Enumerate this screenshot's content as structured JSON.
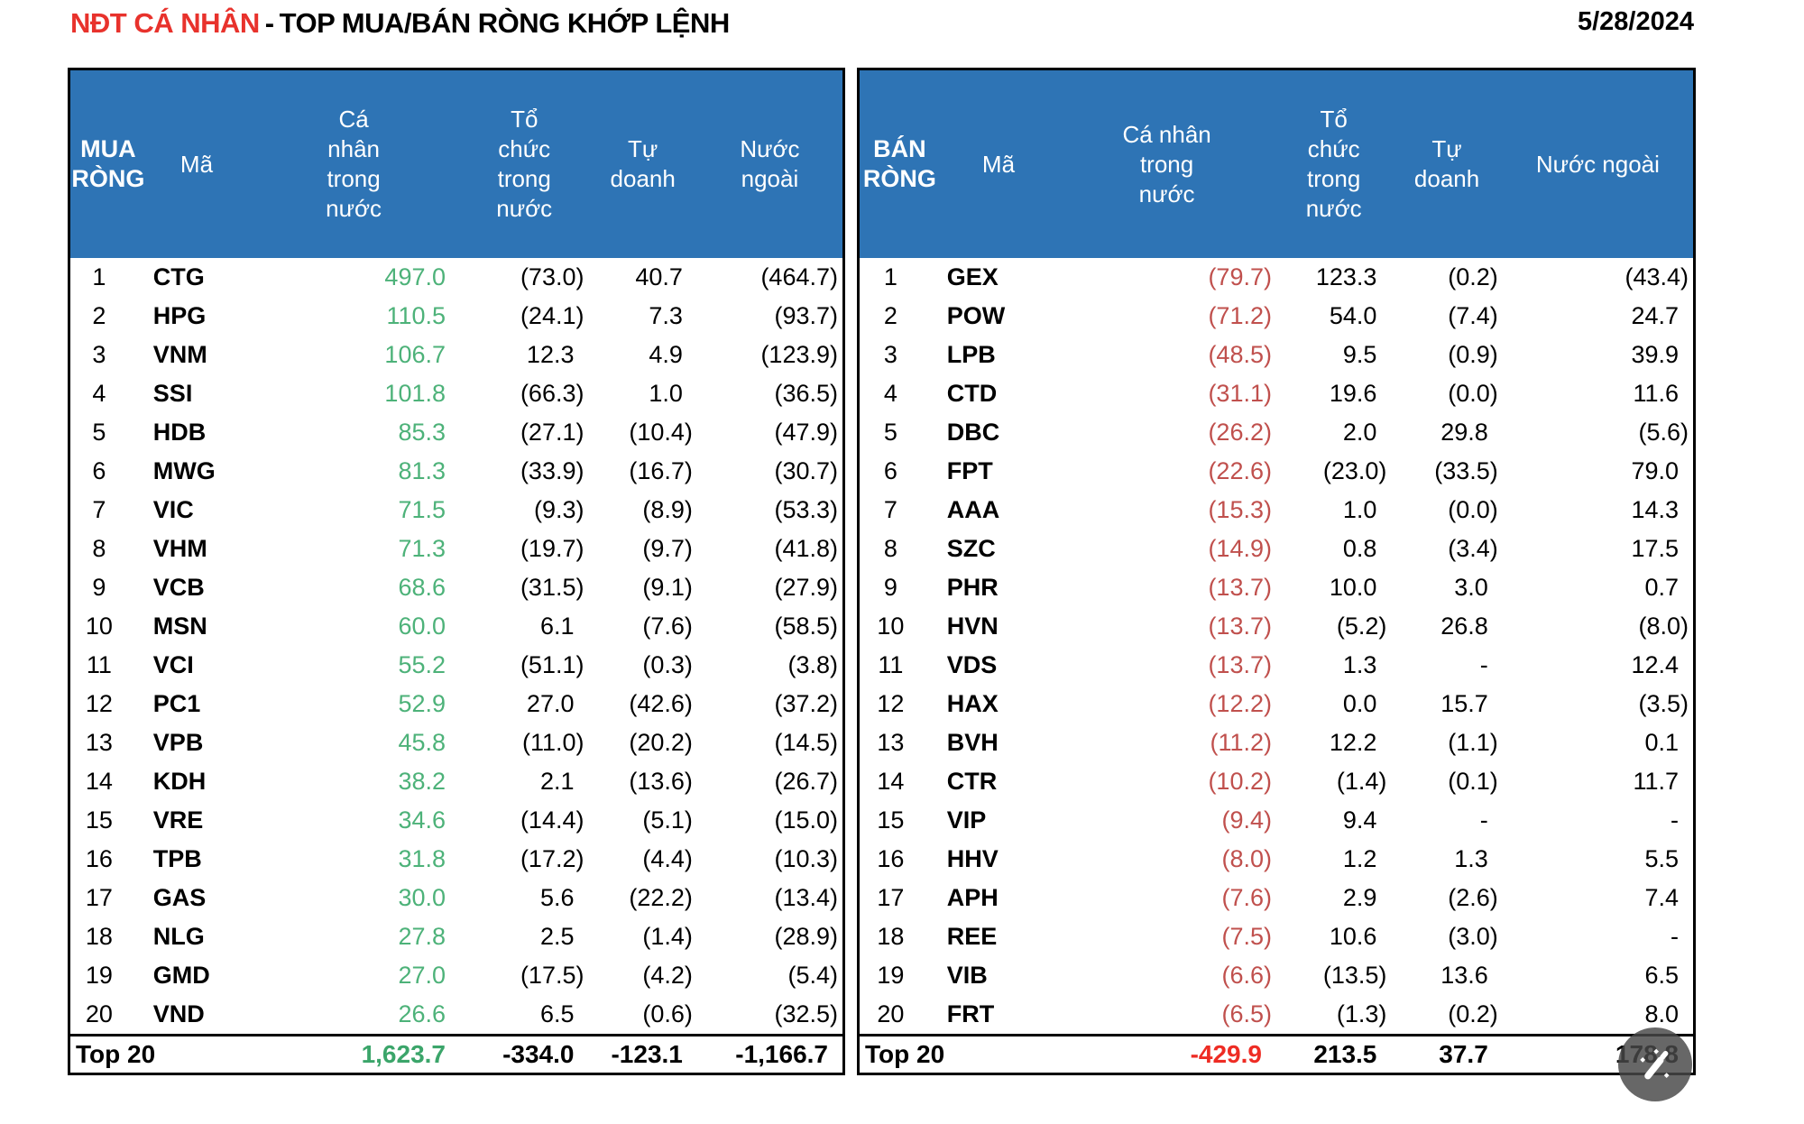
{
  "page": {
    "title_accent": "NĐT CÁ NHÂN",
    "title_separator": "-",
    "title_main": "TOP MUA/BÁN RÒNG KHỚP LỆNH",
    "date": "5/28/2024"
  },
  "colors": {
    "header_bg": "#2E74B5",
    "header_text": "#FFFFFF",
    "buy_value_green": "#4DB279",
    "sell_value_red": "#C0504D",
    "total_buy_green": "#3BA56A",
    "total_sell_red": "#EE2C24",
    "title_accent_red": "#E8322C",
    "border_black": "#000000"
  },
  "row_fields": [
    "rank",
    "code",
    "individual_domestic",
    "org_domestic",
    "proprietary",
    "foreign"
  ],
  "buy_table": {
    "header": {
      "corner": "MUA RÒNG",
      "code": "Mã",
      "individual": "Cá nhân trong nước",
      "org": "Tổ chức trong nước",
      "prop": "Tự doanh",
      "foreign": "Nước ngoài"
    },
    "rows": [
      [
        "1",
        "CTG",
        "497.0",
        "(73.0)",
        "40.7",
        "(464.7)"
      ],
      [
        "2",
        "HPG",
        "110.5",
        "(24.1)",
        "7.3",
        "(93.7)"
      ],
      [
        "3",
        "VNM",
        "106.7",
        "12.3",
        "4.9",
        "(123.9)"
      ],
      [
        "4",
        "SSI",
        "101.8",
        "(66.3)",
        "1.0",
        "(36.5)"
      ],
      [
        "5",
        "HDB",
        "85.3",
        "(27.1)",
        "(10.4)",
        "(47.9)"
      ],
      [
        "6",
        "MWG",
        "81.3",
        "(33.9)",
        "(16.7)",
        "(30.7)"
      ],
      [
        "7",
        "VIC",
        "71.5",
        "(9.3)",
        "(8.9)",
        "(53.3)"
      ],
      [
        "8",
        "VHM",
        "71.3",
        "(19.7)",
        "(9.7)",
        "(41.8)"
      ],
      [
        "9",
        "VCB",
        "68.6",
        "(31.5)",
        "(9.1)",
        "(27.9)"
      ],
      [
        "10",
        "MSN",
        "60.0",
        "6.1",
        "(7.6)",
        "(58.5)"
      ],
      [
        "11",
        "VCI",
        "55.2",
        "(51.1)",
        "(0.3)",
        "(3.8)"
      ],
      [
        "12",
        "PC1",
        "52.9",
        "27.0",
        "(42.6)",
        "(37.2)"
      ],
      [
        "13",
        "VPB",
        "45.8",
        "(11.0)",
        "(20.2)",
        "(14.5)"
      ],
      [
        "14",
        "KDH",
        "38.2",
        "2.1",
        "(13.6)",
        "(26.7)"
      ],
      [
        "15",
        "VRE",
        "34.6",
        "(14.4)",
        "(5.1)",
        "(15.0)"
      ],
      [
        "16",
        "TPB",
        "31.8",
        "(17.2)",
        "(4.4)",
        "(10.3)"
      ],
      [
        "17",
        "GAS",
        "30.0",
        "5.6",
        "(22.2)",
        "(13.4)"
      ],
      [
        "18",
        "NLG",
        "27.8",
        "2.5",
        "(1.4)",
        "(28.9)"
      ],
      [
        "19",
        "GMD",
        "27.0",
        "(17.5)",
        "(4.2)",
        "(5.4)"
      ],
      [
        "20",
        "VND",
        "26.6",
        "6.5",
        "(0.6)",
        "(32.5)"
      ]
    ],
    "total": {
      "label": "Top 20",
      "individual": "1,623.7",
      "org": "-334.0",
      "prop": "-123.1",
      "foreign": "-1,166.7"
    }
  },
  "sell_table": {
    "header": {
      "corner": "BÁN RÒNG",
      "code": "Mã",
      "individual": "Cá nhân trong nước",
      "org": "Tổ chức trong nước",
      "prop": "Tự doanh",
      "foreign": "Nước ngoài"
    },
    "rows": [
      [
        "1",
        "GEX",
        "(79.7)",
        "123.3",
        "(0.2)",
        "(43.4)"
      ],
      [
        "2",
        "POW",
        "(71.2)",
        "54.0",
        "(7.4)",
        "24.7"
      ],
      [
        "3",
        "LPB",
        "(48.5)",
        "9.5",
        "(0.9)",
        "39.9"
      ],
      [
        "4",
        "CTD",
        "(31.1)",
        "19.6",
        "(0.0)",
        "11.6"
      ],
      [
        "5",
        "DBC",
        "(26.2)",
        "2.0",
        "29.8",
        "(5.6)"
      ],
      [
        "6",
        "FPT",
        "(22.6)",
        "(23.0)",
        "(33.5)",
        "79.0"
      ],
      [
        "7",
        "AAA",
        "(15.3)",
        "1.0",
        "(0.0)",
        "14.3"
      ],
      [
        "8",
        "SZC",
        "(14.9)",
        "0.8",
        "(3.4)",
        "17.5"
      ],
      [
        "9",
        "PHR",
        "(13.7)",
        "10.0",
        "3.0",
        "0.7"
      ],
      [
        "10",
        "HVN",
        "(13.7)",
        "(5.2)",
        "26.8",
        "(8.0)"
      ],
      [
        "11",
        "VDS",
        "(13.7)",
        "1.3",
        "-",
        "12.4"
      ],
      [
        "12",
        "HAX",
        "(12.2)",
        "0.0",
        "15.7",
        "(3.5)"
      ],
      [
        "13",
        "BVH",
        "(11.2)",
        "12.2",
        "(1.1)",
        "0.1"
      ],
      [
        "14",
        "CTR",
        "(10.2)",
        "(1.4)",
        "(0.1)",
        "11.7"
      ],
      [
        "15",
        "VIP",
        "(9.4)",
        "9.4",
        "-",
        "-"
      ],
      [
        "16",
        "HHV",
        "(8.0)",
        "1.2",
        "1.3",
        "5.5"
      ],
      [
        "17",
        "APH",
        "(7.6)",
        "2.9",
        "(2.6)",
        "7.4"
      ],
      [
        "18",
        "REE",
        "(7.5)",
        "10.6",
        "(3.0)",
        "-"
      ],
      [
        "19",
        "VIB",
        "(6.6)",
        "(13.5)",
        "13.6",
        "6.5"
      ],
      [
        "20",
        "FRT",
        "(6.5)",
        "(1.3)",
        "(0.2)",
        "8.0"
      ]
    ],
    "total": {
      "label": "Top 20",
      "individual": "-429.9",
      "org": "213.5",
      "prop": "37.7",
      "foreign": "178.8"
    }
  },
  "overlay": {
    "icon": "magic-wand-icon"
  }
}
